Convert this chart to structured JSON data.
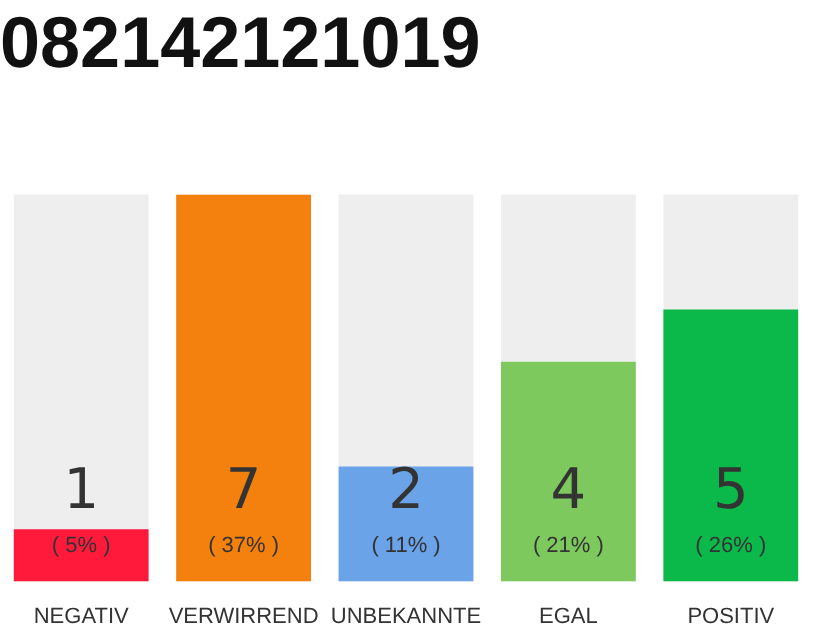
{
  "chart_data": {
    "type": "bar",
    "title": "082142121019",
    "categories": [
      "NEGATIV",
      "VERWIRREND",
      "UNBEKANNTE",
      "EGAL",
      "POSITIV"
    ],
    "values": [
      5,
      37,
      11,
      21,
      26
    ],
    "colors": [
      "#ff1a3c",
      "#f4800e",
      "#6aa3e8",
      "#7dc95e",
      "#0bb84a"
    ],
    "tick_labels": "x",
    "value_labels": [
      "( 5% )",
      "( 37% )",
      "( 11% )",
      "( 21% )",
      "( 26% )"
    ],
    "annotations": [
      "1",
      "7",
      "2",
      "4",
      "5"
    ]
  }
}
